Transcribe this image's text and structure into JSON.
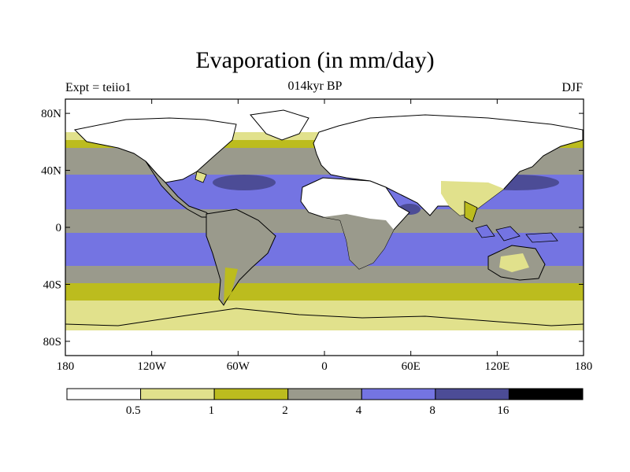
{
  "title": "Evaporation (in mm/day)",
  "subtitle": "014kyr BP",
  "left_label": "Expt = teiio1",
  "right_label": "DJF",
  "map": {
    "projection": "equirectangular",
    "lon_range": [
      -180,
      180
    ],
    "lat_range": [
      -90,
      90
    ],
    "x_ticks": [
      "180",
      "120W",
      "60W",
      "0",
      "60E",
      "120E",
      "180"
    ],
    "y_ticks": [
      "80N",
      "40N",
      "0",
      "40S",
      "80S"
    ],
    "y_tick_lats": [
      80,
      40,
      0,
      -40,
      -80
    ],
    "x_tick_lons": [
      -180,
      -120,
      -60,
      0,
      60,
      120,
      180
    ]
  },
  "colorbar": {
    "levels": [
      "0.5",
      "1",
      "2",
      "4",
      "8",
      "16"
    ],
    "colors": [
      "#ffffff",
      "#e1e18c",
      "#bcbc1e",
      "#9a9a8c",
      "#7474e2",
      "#4c4c96",
      "#000000"
    ]
  }
}
